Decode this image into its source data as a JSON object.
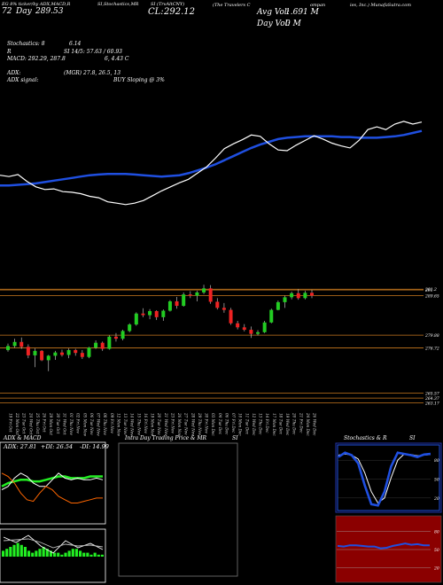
{
  "header": {
    "source_line": "EG 8% ticker/by ADX,MACD,R",
    "day_range_label": "Day",
    "day_range_value": "289.53",
    "ticker_part2": "SI,Stochastics,MR",
    "ticker_part3": "SI (TrvAltCNY)",
    "close_label": "CL:",
    "close_value": "292.12",
    "company_part1": "(The  Travelers  C",
    "company_part2": "ompan",
    "company_part3": "ies, Inc.) MunafaSutra.com",
    "avg_vol_label": "Avg Vol:",
    "avg_vol_value": "1.691 M",
    "day_vol_label": "Day Vol:",
    "day_vol_value": "0   M",
    "prefix_72": "72",
    "stoch_line": "Stochastics: 8",
    "stoch_value_right": "6.14",
    "rsi_line_label": "R",
    "rsi_line_value": "SI 14/5: 57.63 / 60.93",
    "macd_line": "MACD: 292.29,  287.8",
    "macd_line_right": "6,  4.43  C",
    "adx_line_label": "ADX:",
    "adx_line_value": "(MGR) 27.8,  26.5,  13",
    "adx_signal_label": "ADX  signal:",
    "adx_signal_value": "BUY Sloping @ 3%"
  },
  "colors": {
    "bg": "#000000",
    "price_line": "#ffffff",
    "ma_line": "#1f4fe0",
    "candle_up": "#22cc22",
    "candle_down": "#ee2222",
    "sr_line": "#c8781e",
    "rsi_band": "#8b0000",
    "histogram": "#22ee22"
  },
  "chart_data": [
    {
      "type": "line",
      "name": "price-overview",
      "series": [
        {
          "values": [
            205,
            203,
            206,
            196,
            188,
            184,
            185,
            181,
            180,
            178,
            174,
            172,
            166,
            164,
            162,
            164,
            168,
            175,
            182,
            188,
            194,
            199,
            208,
            217,
            230,
            244,
            251,
            257,
            264,
            262,
            251,
            242,
            241,
            249,
            256,
            263,
            258,
            252,
            248,
            245,
            256,
            272,
            276,
            272,
            280,
            284,
            280,
            283
          ]
        },
        {
          "values": [
            190,
            190,
            191,
            192,
            193,
            195,
            197,
            199,
            201,
            203,
            205,
            206,
            207,
            207,
            207,
            206,
            205,
            204,
            203,
            204,
            205,
            208,
            212,
            216,
            221,
            227,
            233,
            239,
            245,
            250,
            254,
            258,
            260,
            261,
            262,
            262,
            262,
            262,
            261,
            261,
            260,
            260,
            260,
            261,
            262,
            264,
            267,
            270
          ]
        }
      ]
    },
    {
      "type": "candlestick",
      "name": "price-candles",
      "categories": [
        "19 Fri Oct",
        "22 Mon Oct",
        "23 Tue Oct",
        "24 Wed Oct",
        "25 Thu Oct",
        "26 Fri Oct",
        "29 Mon Oct",
        "30 Tue Oct",
        "31 Wed Oct",
        "01 Thu Nov",
        "02 Fri Nov",
        "05 Mon Nov",
        "06 Tue Nov",
        "07 Wed Nov",
        "08 Thu Nov",
        "09 Fri Nov",
        "12 Mon Nov",
        "13 Tue Nov",
        "14 Wed Nov",
        "15 Thu Nov",
        "16 Fri Nov",
        "19 Mon Nov",
        "20 Tue Nov",
        "21 Wed Nov",
        "23 Fri Nov",
        "26 Mon Nov",
        "27 Tue Nov",
        "28 Wed Nov",
        "29 Thu Nov",
        "30 Fri Nov",
        "03 Mon Dec",
        "04 Tue Dec",
        "06 Thu Dec",
        "07 Fri Dec",
        "10 Mon Dec",
        "11 Tue Dec",
        "12 Wed Dec",
        "13 Thu Dec",
        "14 Fri Dec",
        "17 Mon Dec",
        "18 Tue Dec",
        "19 Wed Dec",
        "20 Thu Dec",
        "21 Fri Dec",
        "24 Mon Dec",
        "26 Wed Dec"
      ],
      "ohlc": [
        [
          276.2,
          277.8,
          275.8,
          277.2
        ],
        [
          277.2,
          279.0,
          276.8,
          278.2
        ],
        [
          278.2,
          279.3,
          276.5,
          277.0
        ],
        [
          277.0,
          277.6,
          274.2,
          274.9
        ],
        [
          274.9,
          276.6,
          272.0,
          276.0
        ],
        [
          276.0,
          276.2,
          273.5,
          273.7
        ],
        [
          273.7,
          275.0,
          271.0,
          274.8
        ],
        [
          274.8,
          276.0,
          273.8,
          275.6
        ],
        [
          275.6,
          276.3,
          274.6,
          275.0
        ],
        [
          275.0,
          276.6,
          274.2,
          276.2
        ],
        [
          276.2,
          276.5,
          274.8,
          275.5
        ],
        [
          275.5,
          276.2,
          274.0,
          274.5
        ],
        [
          274.5,
          277.0,
          274.2,
          276.8
        ],
        [
          276.8,
          278.6,
          276.5,
          278.0
        ],
        [
          278.0,
          278.3,
          276.0,
          276.5
        ],
        [
          276.5,
          279.8,
          276.3,
          279.5
        ],
        [
          279.5,
          280.4,
          278.3,
          279.0
        ],
        [
          279.0,
          281.2,
          278.6,
          280.9
        ],
        [
          280.9,
          282.8,
          280.6,
          282.5
        ],
        [
          282.5,
          285.5,
          282.2,
          285.2
        ],
        [
          285.2,
          286.5,
          284.3,
          284.8
        ],
        [
          284.8,
          286.3,
          283.8,
          285.8
        ],
        [
          285.8,
          286.0,
          283.6,
          284.3
        ],
        [
          284.3,
          286.2,
          283.4,
          285.9
        ],
        [
          285.9,
          288.5,
          285.7,
          288.2
        ],
        [
          288.2,
          289.3,
          286.4,
          287.1
        ],
        [
          287.1,
          290.4,
          286.9,
          289.9
        ],
        [
          289.9,
          290.7,
          289.0,
          289.6
        ],
        [
          289.6,
          290.8,
          288.2,
          290.4
        ],
        [
          290.4,
          292.3,
          290.0,
          291.4
        ],
        [
          291.4,
          292.2,
          287.6,
          288.1
        ],
        [
          288.1,
          289.0,
          286.2,
          286.6
        ],
        [
          286.6,
          287.8,
          285.4,
          286.1
        ],
        [
          286.1,
          286.6,
          282.4,
          282.8
        ],
        [
          282.8,
          283.4,
          281.3,
          281.8
        ],
        [
          281.8,
          282.6,
          280.8,
          281.2
        ],
        [
          281.2,
          282.0,
          279.2,
          280.2
        ],
        [
          280.2,
          281.1,
          279.8,
          280.6
        ],
        [
          280.6,
          283.4,
          280.4,
          283.0
        ],
        [
          283.0,
          286.4,
          282.8,
          286.1
        ],
        [
          286.1,
          288.4,
          286.0,
          288.0
        ],
        [
          288.0,
          289.6,
          286.6,
          289.2
        ],
        [
          289.2,
          290.6,
          288.7,
          290.2
        ],
        [
          290.2,
          291.2,
          288.6,
          289.0
        ],
        [
          289.0,
          290.8,
          288.7,
          290.3
        ],
        [
          290.3,
          291.0,
          289.0,
          289.6
        ]
      ],
      "levels": [
        291.2,
        291.0,
        289.65,
        279.88,
        276.72,
        265.57,
        264.37,
        263.17
      ],
      "level_labels": [
        "291.2",
        "291",
        "289.65",
        "279.88",
        "276.72",
        "265.57",
        "264.37",
        "263.17"
      ]
    },
    {
      "type": "line",
      "name": "adx-panel",
      "title": "ADX  & MACD",
      "series": [
        {
          "name": "ADX",
          "values": [
            22,
            24,
            25,
            26,
            26,
            25,
            25,
            26,
            27,
            28,
            28,
            27,
            27,
            27,
            28,
            28,
            28
          ]
        },
        {
          "name": "+DI",
          "values": [
            20,
            22,
            27,
            30,
            28,
            24,
            22,
            22,
            26,
            30,
            27,
            26,
            27,
            26,
            26,
            27,
            26
          ]
        },
        {
          "name": "-DI",
          "values": [
            30,
            28,
            24,
            18,
            14,
            13,
            18,
            22,
            20,
            16,
            14,
            12,
            12,
            13,
            14,
            15,
            15
          ]
        }
      ],
      "readout_adx": "ADX: 27.81",
      "readout_pdi": "+DI: 26.54",
      "readout_mdi": "-DI: 14.99"
    },
    {
      "type": "bar",
      "name": "macd-histogram",
      "values": [
        3,
        4,
        5,
        6,
        7,
        6,
        5,
        3,
        2,
        3,
        4,
        5,
        4,
        3,
        2,
        2,
        1,
        2,
        3,
        4,
        4,
        3,
        2,
        2,
        1,
        2,
        1,
        1
      ]
    },
    {
      "type": "line",
      "name": "intraday",
      "title": "Intra  Day  Trading  Price  & MR",
      "title_suffix": "SI",
      "series": []
    },
    {
      "type": "line",
      "name": "stochastics",
      "title": "Stochastics & R",
      "title_suffix": "SI",
      "series": [
        {
          "name": "%K",
          "values": [
            85,
            92,
            88,
            75,
            40,
            10,
            8,
            30,
            70,
            92,
            90,
            88,
            85,
            89,
            90
          ]
        },
        {
          "name": "%D",
          "values": [
            88,
            90,
            88,
            82,
            60,
            30,
            12,
            20,
            52,
            80,
            90,
            89,
            87,
            88,
            89
          ]
        }
      ],
      "ticks": [
        "80",
        "50",
        "20"
      ]
    },
    {
      "type": "line",
      "name": "rsi",
      "series": [
        {
          "name": "RSI",
          "values": [
            56,
            55,
            57,
            57,
            56,
            55,
            55,
            52,
            53,
            56,
            58,
            60,
            58,
            59,
            57,
            57
          ]
        }
      ],
      "ticks": [
        "80",
        "50",
        "20"
      ]
    }
  ]
}
